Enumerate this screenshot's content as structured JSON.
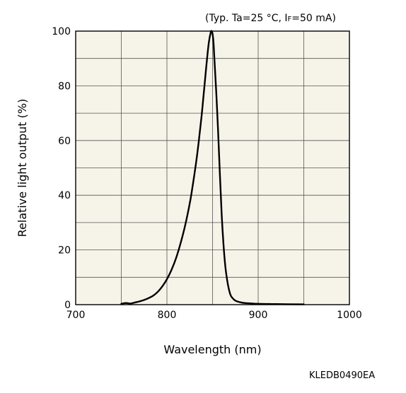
{
  "chart_data": {
    "type": "line",
    "note": {
      "open": "(Typ. Ta=25 °C, I",
      "sub": "F",
      "close": "=50 mA)"
    },
    "xlabel": "Wavelength (nm)",
    "ylabel": "Relative light output (%)",
    "code": "KLEDB0490EA",
    "xlim": [
      700,
      1000
    ],
    "ylim": [
      0,
      100
    ],
    "xticks": [
      700,
      800,
      900,
      1000
    ],
    "yticks": [
      0,
      20,
      40,
      60,
      80,
      100
    ],
    "grid": true,
    "background_color": "#f6f4e9",
    "line_color": "#000000",
    "series": [
      {
        "x": [
          750,
          755,
          760,
          765,
          770,
          775,
          780,
          785,
          790,
          795,
          800,
          805,
          810,
          815,
          820,
          825,
          828,
          832,
          835,
          838,
          840,
          842,
          844,
          846,
          848,
          849,
          850,
          851,
          852,
          854,
          856,
          858,
          860,
          862,
          864,
          866,
          868,
          870,
          873,
          876,
          880,
          885,
          890,
          900,
          920,
          950
        ],
        "y": [
          0.3,
          0.6,
          0.4,
          0.8,
          1.2,
          1.7,
          2.4,
          3.3,
          4.7,
          6.7,
          9.3,
          12.7,
          17,
          22.5,
          29,
          37,
          43,
          52,
          60,
          69,
          76,
          83,
          90,
          96,
          99.5,
          100,
          99,
          96,
          90,
          78,
          64,
          48,
          33,
          22,
          14,
          9,
          5.5,
          3.3,
          2,
          1.3,
          0.9,
          0.6,
          0.5,
          0.3,
          0.2,
          0.1
        ]
      }
    ]
  }
}
